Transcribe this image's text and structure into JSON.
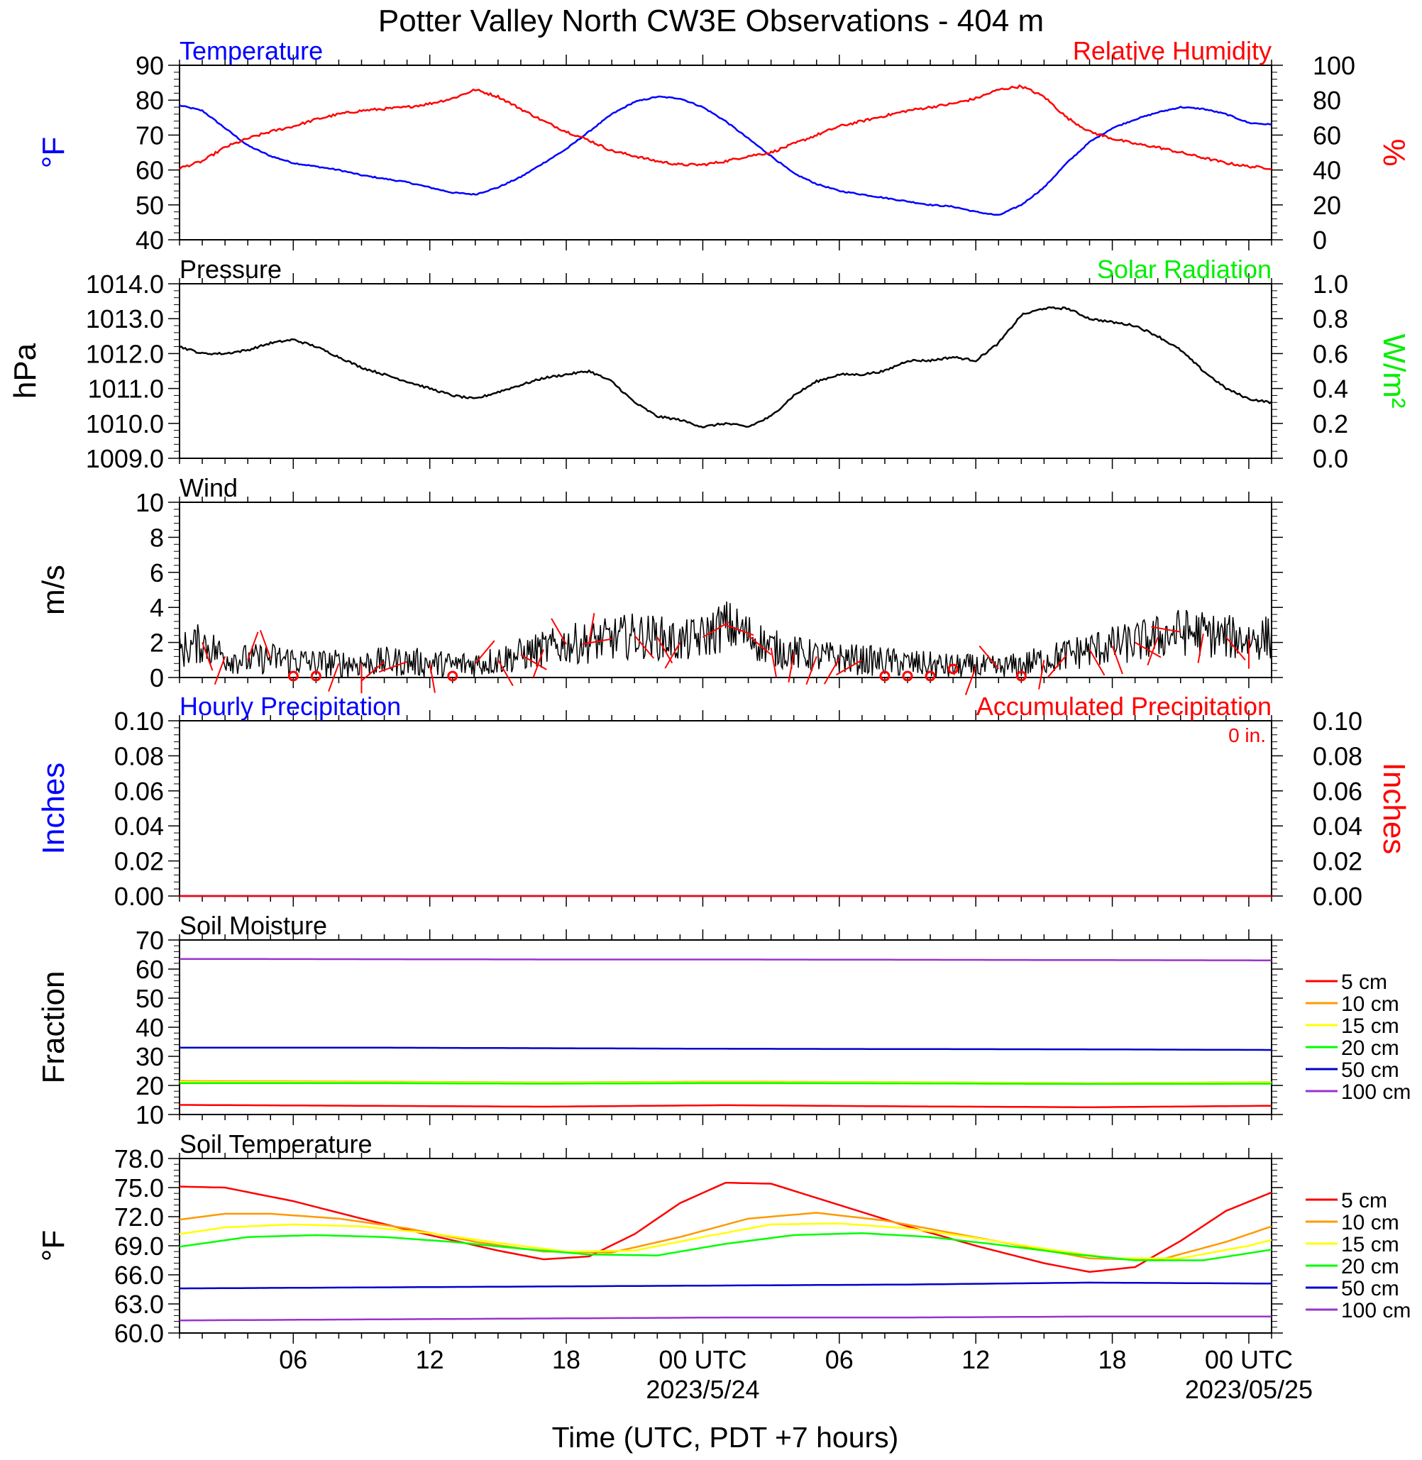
{
  "title": "Potter Valley North CW3E Observations - 404 m",
  "colors": {
    "blue": "#0000ff",
    "red": "#ff0000",
    "green": "#00ee00",
    "black": "#000000",
    "orange": "#ff9900",
    "yellow": "#ffff00",
    "lime": "#00ff00",
    "purple": "#9933cc"
  },
  "x_axis": {
    "label": "Time (UTC, PDT +7 hours)",
    "range_hours": [
      0,
      48
    ],
    "ticks": [
      {
        "hour": 5,
        "label": "06",
        "sub": ""
      },
      {
        "hour": 11,
        "label": "12",
        "sub": ""
      },
      {
        "hour": 17,
        "label": "18",
        "sub": ""
      },
      {
        "hour": 23,
        "label": "00 UTC",
        "sub": "2023/5/24"
      },
      {
        "hour": 29,
        "label": "06",
        "sub": ""
      },
      {
        "hour": 35,
        "label": "12",
        "sub": ""
      },
      {
        "hour": 41,
        "label": "18",
        "sub": ""
      },
      {
        "hour": 47,
        "label": "00 UTC",
        "sub": "2023/05/25"
      }
    ]
  },
  "chart_data": [
    {
      "type": "line",
      "title_left": "Temperature",
      "title_right": "Relative Humidity",
      "ylabel_left": "°F",
      "ylabel_right": "%",
      "ylim_left": [
        40,
        90
      ],
      "ylim_right": [
        0,
        100
      ],
      "yticks_left": [
        "40",
        "50",
        "60",
        "70",
        "80",
        "90"
      ],
      "yticks_right": [
        "0",
        "20",
        "40",
        "60",
        "80",
        "100"
      ],
      "series": [
        {
          "name": "Temperature",
          "axis": "left",
          "color": "#0000ff",
          "x": [
            0,
            1,
            2,
            3,
            4,
            5,
            6,
            7,
            8,
            9,
            10,
            11,
            12,
            13,
            14,
            15,
            16,
            17,
            18,
            19,
            20,
            21,
            22,
            23,
            24,
            25,
            26,
            27,
            28,
            29,
            30,
            31,
            32,
            33,
            34,
            35,
            36,
            37,
            38,
            39,
            40,
            41,
            42,
            43,
            44,
            45,
            46,
            47,
            48
          ],
          "y": [
            78.5,
            77,
            72,
            67,
            64,
            62,
            61,
            60,
            58.5,
            57.5,
            56.5,
            55,
            53.5,
            53,
            55,
            58,
            62,
            66,
            71,
            76,
            79.5,
            81,
            80.5,
            78,
            74,
            69,
            64,
            59,
            56,
            54,
            53,
            52,
            51,
            50,
            49.5,
            48,
            47,
            50,
            55,
            62,
            68,
            72,
            74.5,
            76.5,
            78,
            77.5,
            76,
            73.5,
            73
          ]
        },
        {
          "name": "Relative Humidity",
          "axis": "right",
          "color": "#ff0000",
          "x": [
            0,
            1,
            2,
            3,
            4,
            5,
            6,
            7,
            8,
            9,
            10,
            11,
            12,
            13,
            14,
            15,
            16,
            17,
            18,
            19,
            20,
            21,
            22,
            23,
            24,
            25,
            26,
            27,
            28,
            29,
            30,
            31,
            32,
            33,
            34,
            35,
            36,
            37,
            38,
            39,
            40,
            41,
            42,
            43,
            44,
            45,
            46,
            47,
            48
          ],
          "y": [
            41,
            45,
            53,
            58,
            62,
            65,
            69,
            72,
            74,
            75,
            76,
            78,
            81,
            86,
            82,
            75,
            68,
            62,
            57,
            51,
            48,
            45,
            43,
            43,
            45,
            48,
            50,
            55,
            60,
            65,
            68,
            71,
            74,
            76,
            78,
            81,
            86,
            88,
            82,
            70,
            62,
            58,
            55,
            53,
            50,
            47,
            44,
            42,
            41
          ]
        }
      ]
    },
    {
      "type": "line",
      "title_left": "Pressure",
      "title_right": "Solar Radiation",
      "ylabel_left": "hPa",
      "ylabel_right": "W/m²",
      "ylim_left": [
        1009,
        1014
      ],
      "ylim_right": [
        0,
        1
      ],
      "yticks_left": [
        "1009.0",
        "1010.0",
        "1011.0",
        "1012.0",
        "1013.0",
        "1014.0"
      ],
      "yticks_right": [
        "0.0",
        "0.2",
        "0.4",
        "0.6",
        "0.8",
        "1.0"
      ],
      "series": [
        {
          "name": "Pressure",
          "axis": "left",
          "color": "#000000",
          "x": [
            0,
            1,
            2,
            3,
            4,
            5,
            6,
            7,
            8,
            9,
            10,
            11,
            12,
            13,
            14,
            15,
            16,
            17,
            18,
            19,
            20,
            21,
            22,
            23,
            24,
            25,
            26,
            27,
            28,
            29,
            30,
            31,
            32,
            33,
            34,
            35,
            36,
            37,
            38,
            39,
            40,
            41,
            42,
            43,
            44,
            45,
            46,
            47,
            48
          ],
          "y": [
            1012.2,
            1012.0,
            1012.0,
            1012.1,
            1012.3,
            1012.4,
            1012.2,
            1011.9,
            1011.6,
            1011.4,
            1011.2,
            1011.0,
            1010.8,
            1010.7,
            1010.9,
            1011.1,
            1011.3,
            1011.4,
            1011.5,
            1011.2,
            1010.6,
            1010.2,
            1010.1,
            1009.9,
            1010.0,
            1009.9,
            1010.2,
            1010.8,
            1011.2,
            1011.4,
            1011.4,
            1011.5,
            1011.8,
            1011.8,
            1011.9,
            1011.8,
            1012.3,
            1013.1,
            1013.3,
            1013.3,
            1013.0,
            1012.9,
            1012.8,
            1012.5,
            1012.1,
            1011.5,
            1011.0,
            1010.7,
            1010.6
          ]
        }
      ]
    },
    {
      "type": "line",
      "title_left": "Wind",
      "ylabel_left": "m/s",
      "ylim_left": [
        0,
        10
      ],
      "yticks_left": [
        "0",
        "2",
        "4",
        "6",
        "8",
        "10"
      ],
      "series": [
        {
          "name": "Wind",
          "axis": "left",
          "color": "#000000",
          "x": [
            0,
            1,
            2,
            3,
            4,
            5,
            6,
            7,
            8,
            9,
            10,
            11,
            12,
            13,
            14,
            15,
            16,
            17,
            18,
            19,
            20,
            21,
            22,
            23,
            24,
            25,
            26,
            27,
            28,
            29,
            30,
            31,
            32,
            33,
            34,
            35,
            36,
            37,
            38,
            39,
            40,
            41,
            42,
            43,
            44,
            45,
            46,
            47,
            48
          ],
          "y": [
            1.5,
            2.0,
            1.2,
            1.0,
            1.1,
            1.0,
            0.8,
            0.8,
            0.8,
            0.9,
            0.9,
            0.8,
            0.7,
            0.8,
            1.0,
            1.3,
            1.6,
            1.9,
            2.0,
            2.2,
            2.4,
            2.3,
            2.0,
            2.3,
            3.0,
            2.4,
            1.7,
            1.4,
            1.2,
            1.1,
            1.0,
            0.9,
            0.8,
            0.7,
            0.6,
            0.6,
            0.5,
            0.7,
            1.0,
            1.3,
            1.6,
            1.8,
            2.0,
            2.3,
            2.6,
            2.5,
            2.3,
            2.2,
            2.3
          ]
        }
      ]
    },
    {
      "type": "line",
      "title_left": "Hourly Precipitation",
      "title_right": "Accumulated Precipitation",
      "annotation": "0 in.",
      "ylabel_left": "Inches",
      "ylabel_right": "Inches",
      "ylim_left": [
        0,
        0.1
      ],
      "ylim_right": [
        0,
        0.1
      ],
      "yticks_left": [
        "0.00",
        "0.02",
        "0.04",
        "0.06",
        "0.08",
        "0.10"
      ],
      "yticks_right": [
        "0.00",
        "0.02",
        "0.04",
        "0.06",
        "0.08",
        "0.10"
      ],
      "series": [
        {
          "name": "Hourly Precipitation",
          "axis": "left",
          "color": "#0000ff",
          "x": [
            0,
            48
          ],
          "y": [
            0,
            0
          ]
        },
        {
          "name": "Accumulated Precipitation",
          "axis": "right",
          "color": "#ff0000",
          "x": [
            0,
            48
          ],
          "y": [
            0,
            0
          ]
        }
      ]
    },
    {
      "type": "line",
      "title_left": "Soil Moisture",
      "ylabel_left": "Fraction",
      "ylim_left": [
        10,
        70
      ],
      "yticks_left": [
        "10",
        "20",
        "30",
        "40",
        "50",
        "60",
        "70"
      ],
      "legend": "right",
      "series": [
        {
          "name": "5 cm",
          "color": "#ff0000",
          "x": [
            0,
            8,
            16,
            24,
            32,
            40,
            48
          ],
          "y": [
            13.3,
            13.0,
            12.7,
            13.2,
            12.8,
            12.5,
            13.0
          ]
        },
        {
          "name": "10 cm",
          "color": "#ff9900",
          "x": [
            0,
            8,
            16,
            24,
            32,
            40,
            48
          ],
          "y": [
            21.5,
            21.3,
            21.0,
            21.3,
            21.1,
            20.8,
            21.1
          ]
        },
        {
          "name": "15 cm",
          "color": "#ffff00",
          "x": [
            0,
            8,
            16,
            24,
            32,
            40,
            48
          ],
          "y": [
            21.2,
            21.1,
            20.9,
            21.1,
            21.0,
            20.8,
            21.0
          ]
        },
        {
          "name": "20 cm",
          "color": "#00ff00",
          "x": [
            0,
            8,
            16,
            24,
            32,
            40,
            48
          ],
          "y": [
            20.8,
            20.8,
            20.6,
            20.8,
            20.7,
            20.5,
            20.6
          ]
        },
        {
          "name": "50 cm",
          "color": "#0000cc",
          "x": [
            0,
            8,
            16,
            24,
            32,
            40,
            48
          ],
          "y": [
            33.0,
            33.0,
            32.8,
            32.6,
            32.5,
            32.4,
            32.2
          ]
        },
        {
          "name": "100 cm",
          "color": "#9933cc",
          "x": [
            0,
            8,
            16,
            24,
            32,
            40,
            48
          ],
          "y": [
            63.5,
            63.4,
            63.3,
            63.3,
            63.2,
            63.1,
            63.0
          ]
        }
      ]
    },
    {
      "type": "line",
      "title_left": "Soil Temperature",
      "ylabel_left": "°F",
      "ylim_left": [
        60,
        78
      ],
      "yticks_left": [
        "60.0",
        "63.0",
        "66.0",
        "69.0",
        "72.0",
        "75.0",
        "78.0"
      ],
      "legend": "right",
      "series": [
        {
          "name": "5 cm",
          "color": "#ff0000",
          "x": [
            0,
            2,
            5,
            8,
            11,
            14,
            16,
            18,
            20,
            22,
            24,
            26,
            29,
            32,
            35,
            38,
            40,
            42,
            44,
            46,
            48
          ],
          "y": [
            75.1,
            75.0,
            73.6,
            71.8,
            70.1,
            68.5,
            67.6,
            67.9,
            70.2,
            73.4,
            75.5,
            75.4,
            73.2,
            71.0,
            69.0,
            67.2,
            66.3,
            66.8,
            69.5,
            72.6,
            74.5
          ]
        },
        {
          "name": "10 cm",
          "color": "#ff9900",
          "x": [
            0,
            2,
            4,
            7,
            10,
            13,
            16,
            19,
            22,
            25,
            28,
            31,
            34,
            37,
            40,
            43,
            46,
            48
          ],
          "y": [
            71.7,
            72.3,
            72.3,
            71.8,
            70.8,
            69.4,
            68.4,
            68.3,
            69.9,
            71.8,
            72.4,
            71.6,
            70.3,
            69.0,
            67.7,
            67.5,
            69.4,
            71.0
          ]
        },
        {
          "name": "15 cm",
          "color": "#ffff00",
          "x": [
            0,
            2,
            5,
            8,
            11,
            14,
            17,
            20,
            23,
            26,
            29,
            32,
            35,
            38,
            41,
            44,
            47,
            48
          ],
          "y": [
            70.2,
            70.9,
            71.2,
            71.0,
            70.3,
            69.3,
            68.4,
            68.5,
            69.9,
            71.2,
            71.3,
            70.8,
            69.8,
            68.7,
            67.7,
            67.7,
            69.0,
            69.6
          ]
        },
        {
          "name": "20 cm",
          "color": "#00ff00",
          "x": [
            0,
            3,
            6,
            9,
            12,
            15,
            18,
            21,
            24,
            27,
            30,
            33,
            36,
            39,
            42,
            45,
            48
          ],
          "y": [
            68.9,
            69.9,
            70.1,
            69.9,
            69.4,
            68.7,
            68.1,
            68.0,
            69.2,
            70.1,
            70.3,
            69.9,
            69.1,
            68.2,
            67.5,
            67.5,
            68.6
          ]
        },
        {
          "name": "50 cm",
          "color": "#0000cc",
          "x": [
            0,
            8,
            16,
            24,
            32,
            40,
            48
          ],
          "y": [
            64.6,
            64.7,
            64.8,
            64.9,
            65.0,
            65.2,
            65.1
          ]
        },
        {
          "name": "100 cm",
          "color": "#9933cc",
          "x": [
            0,
            8,
            16,
            24,
            32,
            40,
            48
          ],
          "y": [
            61.3,
            61.4,
            61.5,
            61.6,
            61.6,
            61.7,
            61.7
          ]
        }
      ]
    }
  ]
}
